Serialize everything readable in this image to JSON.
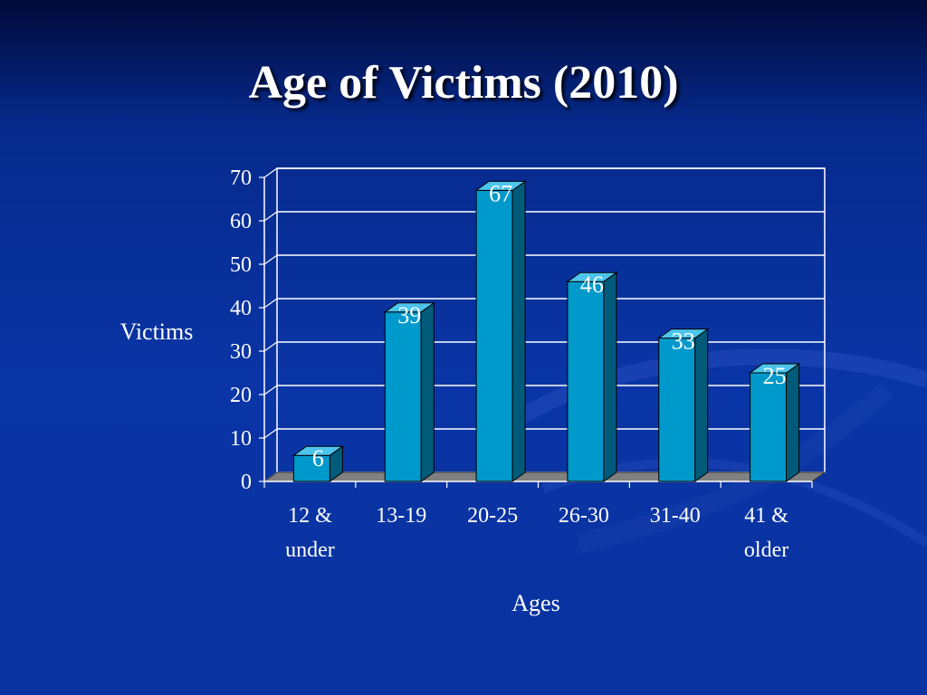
{
  "slide": {
    "title": "Age of Victims (2010)"
  },
  "colors": {
    "background": "#0a35a6",
    "bar_front": "#0099cc",
    "bar_top": "#4cc4ec",
    "bar_side": "#005a7a",
    "floor": "#808080",
    "grid": "#ffffff",
    "text": "#ffffff"
  },
  "chart_data": {
    "type": "bar",
    "title": "Age of Victims (2010)",
    "xlabel": "Ages",
    "ylabel": "Victims",
    "categories": [
      "12 & under",
      "13-19",
      "20-25",
      "26-30",
      "31-40",
      "41 & older"
    ],
    "category_lines": [
      [
        "12 &",
        "under"
      ],
      [
        "13-19"
      ],
      [
        "20-25"
      ],
      [
        "26-30"
      ],
      [
        "31-40"
      ],
      [
        "41 &",
        "older"
      ]
    ],
    "values": [
      6,
      39,
      67,
      46,
      33,
      25
    ],
    "ylim": [
      0,
      70
    ],
    "yticks": [
      0,
      10,
      20,
      30,
      40,
      50,
      60,
      70
    ],
    "grid": true,
    "data_labels": true,
    "style": "3d-column"
  }
}
